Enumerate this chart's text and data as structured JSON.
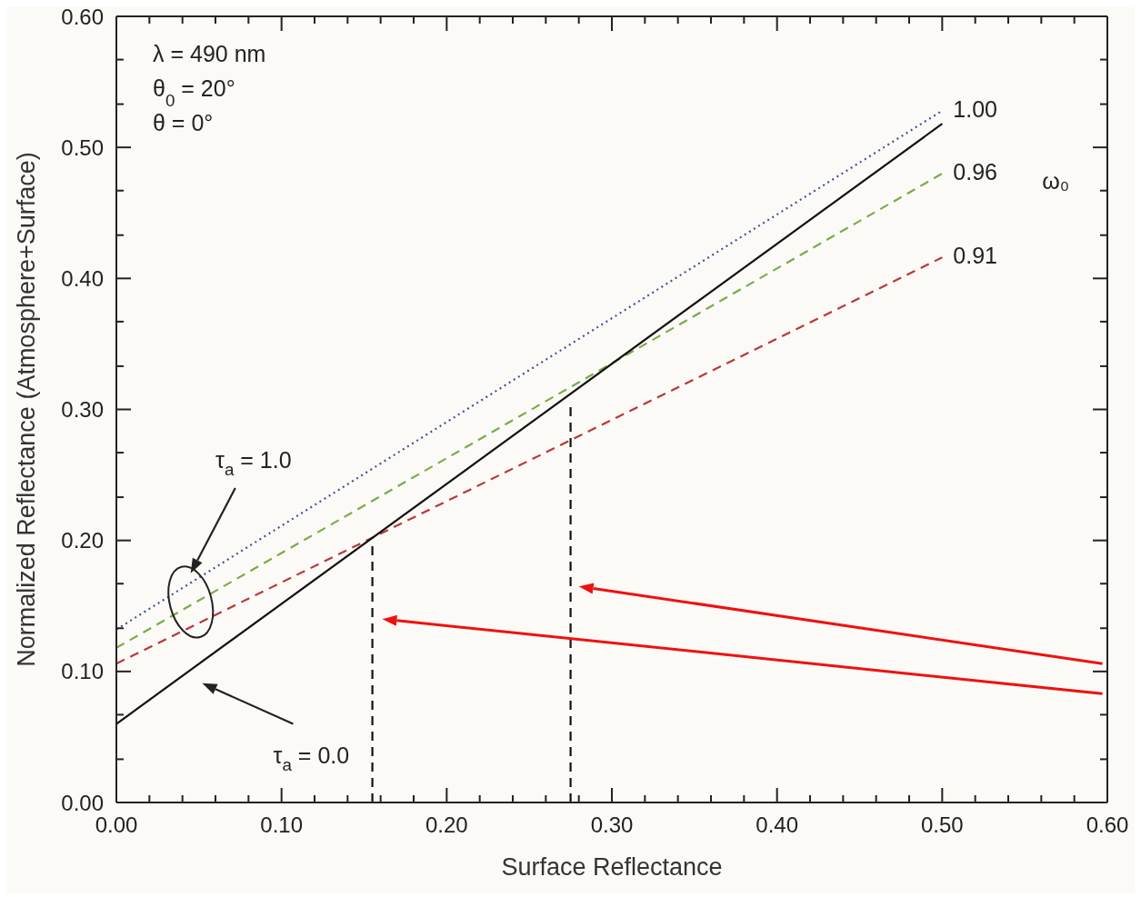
{
  "chart_data": {
    "type": "line",
    "xlabel": "Surface Reflectance",
    "ylabel": "Normalized Reflectance (Atmosphere+Surface)",
    "legend_title": "ω₀",
    "xlim": [
      0,
      0.6
    ],
    "ylim": [
      0,
      0.6
    ],
    "xticks": [
      {
        "value": 0,
        "label": "0.00"
      },
      {
        "value": 0.02,
        "label": null
      },
      {
        "value": 0.04,
        "label": null
      },
      {
        "value": 0.06,
        "label": null
      },
      {
        "value": 0.08,
        "label": null
      },
      {
        "value": 0.1,
        "label": "0.10"
      },
      {
        "value": 0.12,
        "label": null
      },
      {
        "value": 0.14,
        "label": null
      },
      {
        "value": 0.16,
        "label": null
      },
      {
        "value": 0.18,
        "label": null
      },
      {
        "value": 0.2,
        "label": "0.20"
      },
      {
        "value": 0.22,
        "label": null
      },
      {
        "value": 0.24,
        "label": null
      },
      {
        "value": 0.26,
        "label": null
      },
      {
        "value": 0.28,
        "label": null
      },
      {
        "value": 0.3,
        "label": "0.30"
      },
      {
        "value": 0.32,
        "label": null
      },
      {
        "value": 0.34,
        "label": null
      },
      {
        "value": 0.36,
        "label": null
      },
      {
        "value": 0.38,
        "label": null
      },
      {
        "value": 0.4,
        "label": "0.40"
      },
      {
        "value": 0.42,
        "label": null
      },
      {
        "value": 0.44,
        "label": null
      },
      {
        "value": 0.46,
        "label": null
      },
      {
        "value": 0.48,
        "label": null
      },
      {
        "value": 0.5,
        "label": "0.50"
      },
      {
        "value": 0.52,
        "label": null
      },
      {
        "value": 0.54,
        "label": null
      },
      {
        "value": 0.56,
        "label": null
      },
      {
        "value": 0.58,
        "label": null
      },
      {
        "value": 0.6,
        "label": "0.60"
      }
    ],
    "yticks": [
      {
        "value": 0,
        "label": "0.00"
      },
      {
        "value": 0.033,
        "label": null
      },
      {
        "value": 0.067,
        "label": null
      },
      {
        "value": 0.1,
        "label": "0.10"
      },
      {
        "value": 0.133,
        "label": null
      },
      {
        "value": 0.167,
        "label": null
      },
      {
        "value": 0.2,
        "label": "0.20"
      },
      {
        "value": 0.233,
        "label": null
      },
      {
        "value": 0.267,
        "label": null
      },
      {
        "value": 0.3,
        "label": "0.30"
      },
      {
        "value": 0.333,
        "label": null
      },
      {
        "value": 0.367,
        "label": null
      },
      {
        "value": 0.4,
        "label": "0.40"
      },
      {
        "value": 0.433,
        "label": null
      },
      {
        "value": 0.467,
        "label": null
      },
      {
        "value": 0.5,
        "label": "0.50"
      },
      {
        "value": 0.533,
        "label": null
      },
      {
        "value": 0.567,
        "label": null
      },
      {
        "value": 0.6,
        "label": "0.60"
      }
    ],
    "marker": "none",
    "series": [
      {
        "name": "1.00",
        "color": "#4a4f8c",
        "line_style": "dotted",
        "x": [
          0,
          0.5
        ],
        "values": [
          0.132,
          0.528
        ]
      },
      {
        "name": "0.96",
        "color": "#7aab4c",
        "line_style": "dashed",
        "x": [
          0,
          0.5
        ],
        "values": [
          0.118,
          0.48
        ]
      },
      {
        "name": "0.91",
        "color": "#b8383c",
        "line_style": "dashed",
        "x": [
          0,
          0.5
        ],
        "values": [
          0.106,
          0.416
        ]
      },
      {
        "color": "#111111",
        "line_style": "solid",
        "x": [
          0,
          0.5
        ],
        "values": [
          0.06,
          0.518
        ]
      },
      {
        "color": "#111111",
        "line_style": "dashed",
        "x": [
          0.155,
          0.155
        ],
        "values": [
          0,
          0.2
        ]
      },
      {
        "color": "#111111",
        "line_style": "dashed",
        "x": [
          0.275,
          0.275
        ],
        "values": [
          0,
          0.305
        ]
      }
    ],
    "annotations": [
      "λ = 490 nm",
      "θ$_{0}$ = 20°",
      "θ = 0°",
      "τ$_{a}$ = 1.0",
      "τ$_{a}$ = 0.0"
    ]
  }
}
